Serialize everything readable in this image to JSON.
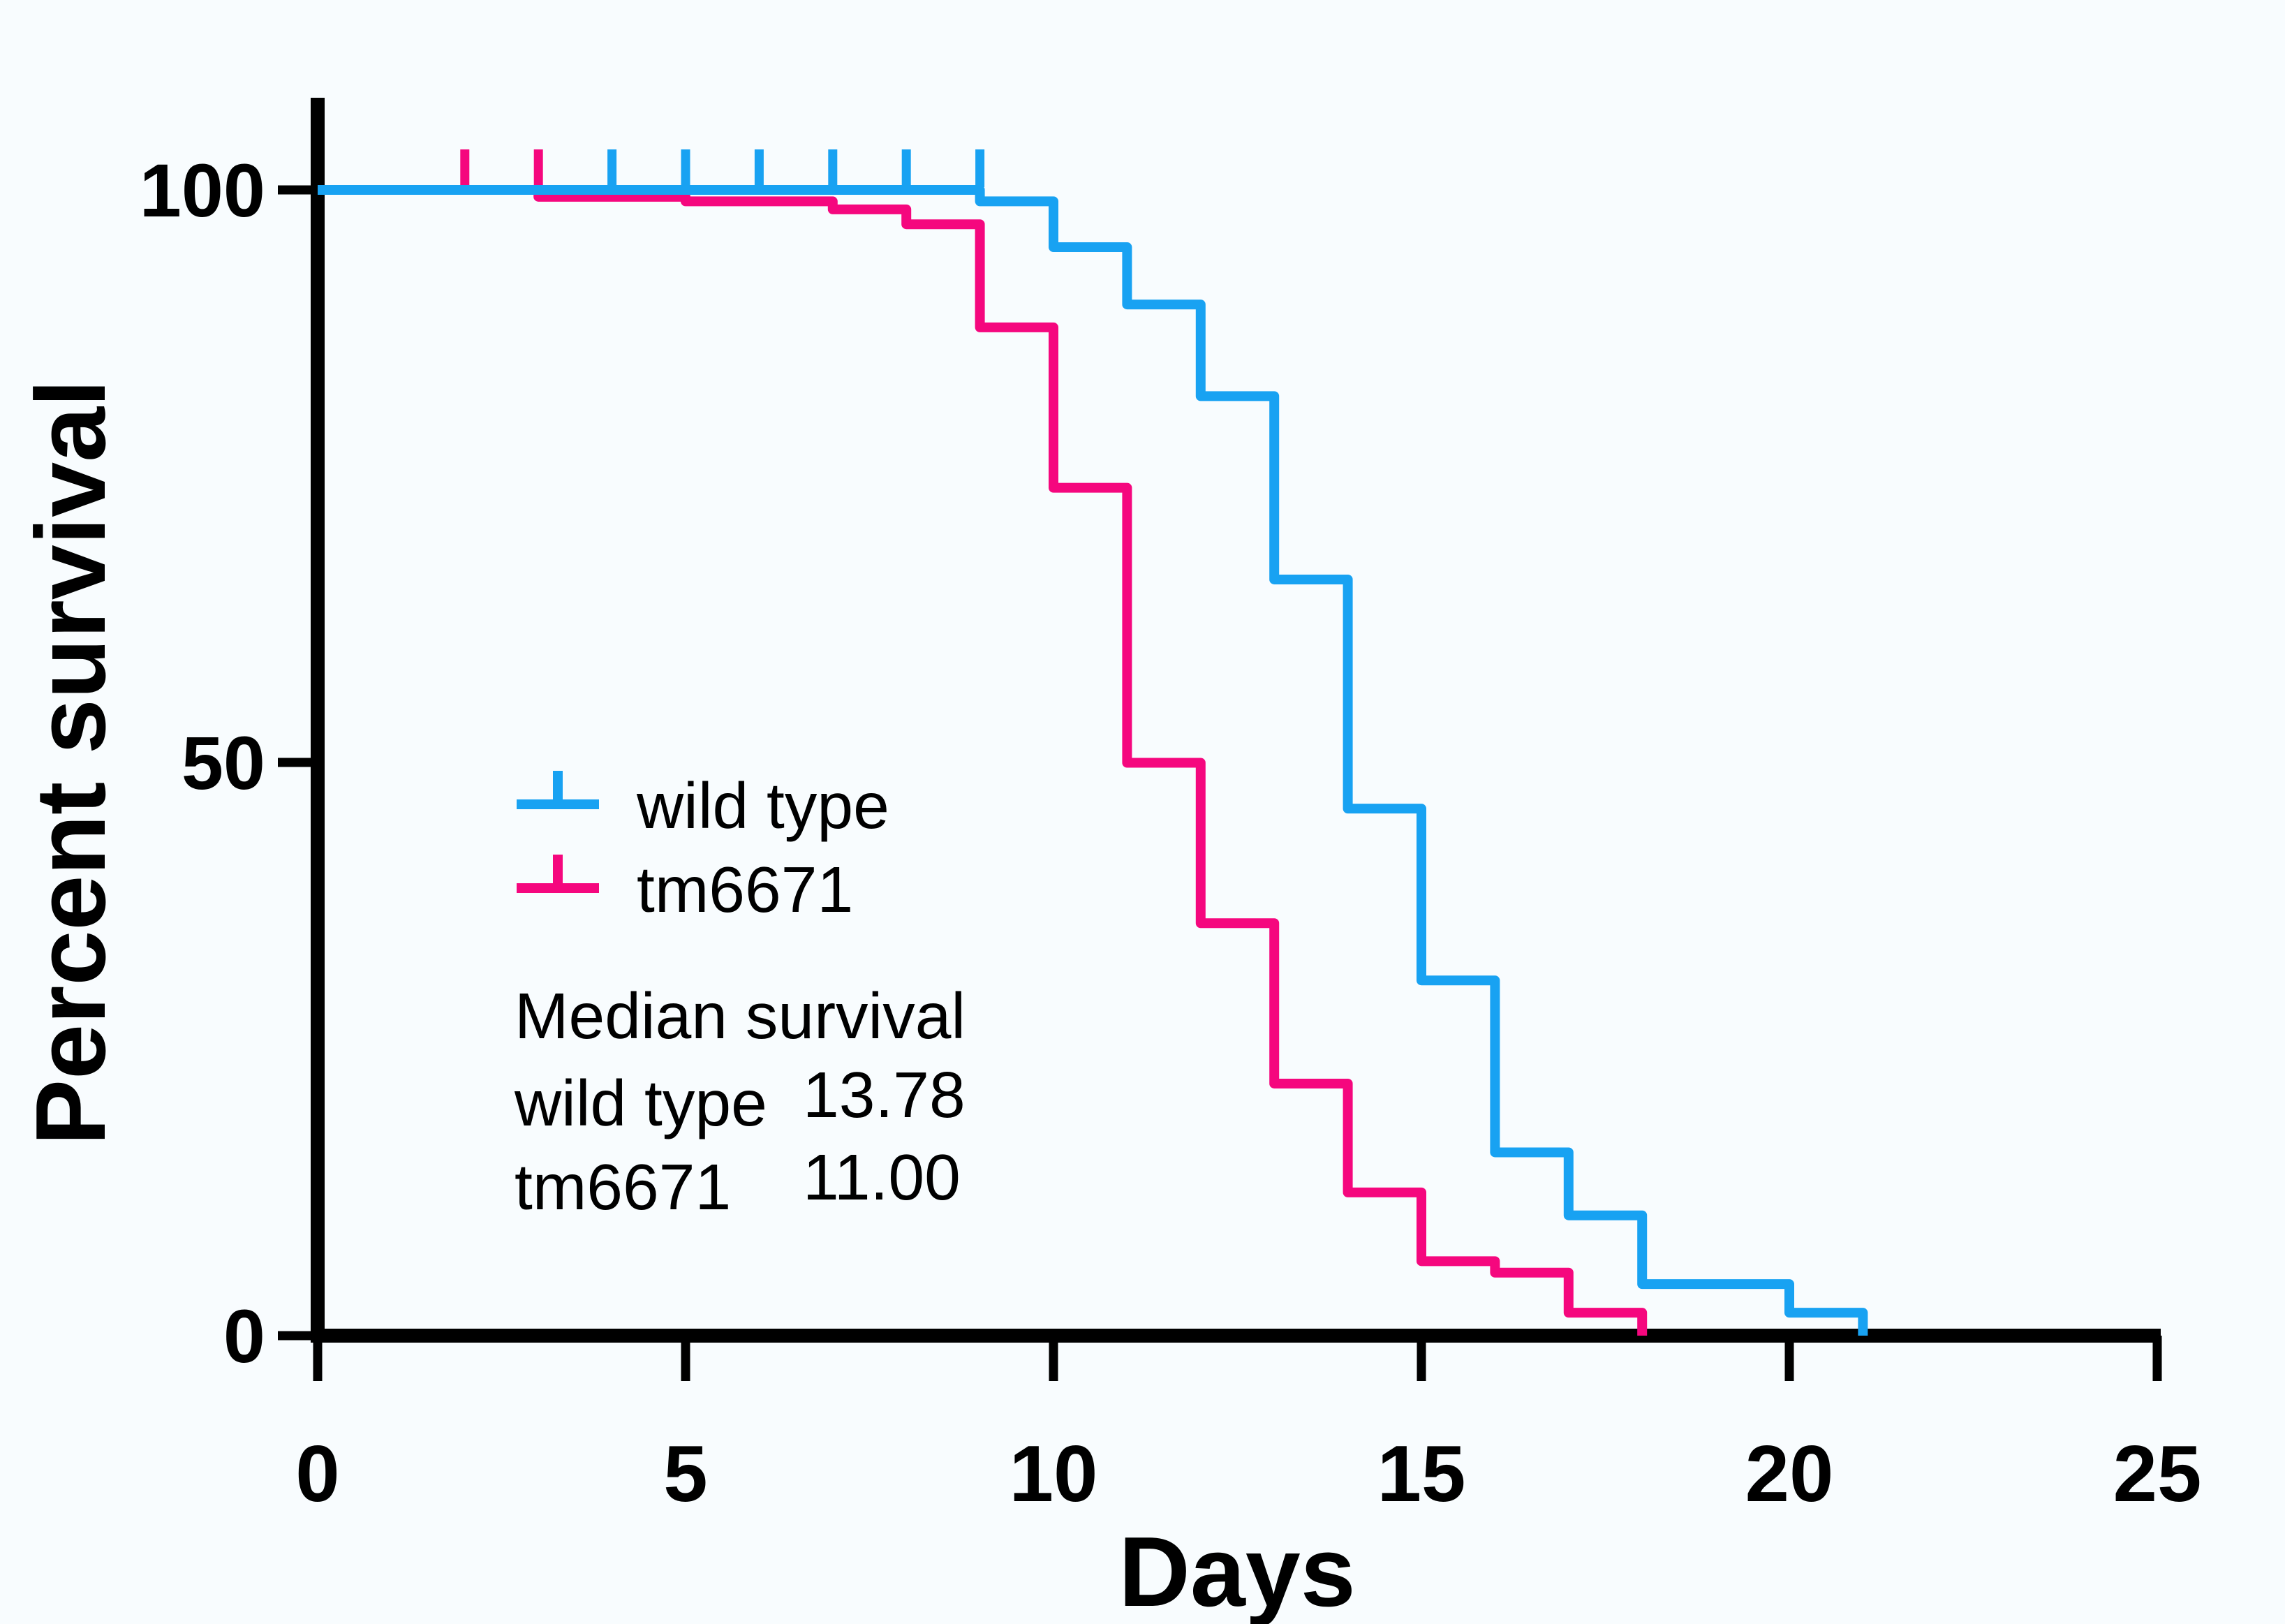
{
  "figure": {
    "kind": "kaplan-meier-survival-plot",
    "background": "#F8FCFE"
  },
  "chart_data": {
    "type": "line",
    "step_mode": "post",
    "title": "",
    "xlabel": "Days",
    "ylabel": "Percent survival",
    "xlim": [
      0,
      25
    ],
    "ylim": [
      0,
      100
    ],
    "grid": false,
    "legend_position": "inside-center-left",
    "x_tick_values": [
      0,
      5,
      10,
      15,
      20,
      25
    ],
    "x_tick_labels": [
      "0",
      "5",
      "10",
      "15",
      "20",
      "25"
    ],
    "y_tick_values": [
      100,
      50,
      0
    ],
    "y_tick_labels": [
      "100",
      "50",
      "0"
    ],
    "series": [
      {
        "name": "wild type",
        "color": "#18A2F2",
        "start": [
          0,
          100
        ],
        "events": [
          [
            9,
            99
          ],
          [
            10,
            95
          ],
          [
            11,
            90
          ],
          [
            12,
            82
          ],
          [
            13,
            66
          ],
          [
            14,
            46
          ],
          [
            15,
            31
          ],
          [
            16,
            16
          ],
          [
            17,
            10.5
          ],
          [
            18,
            4.5
          ],
          [
            20,
            2
          ],
          [
            21,
            0
          ]
        ],
        "censor_days": [
          4,
          5,
          6,
          7,
          8,
          9
        ],
        "censor_pct": 100,
        "median_survival": "13.78"
      },
      {
        "name": "tm6671",
        "color": "#F5077E",
        "start": [
          0,
          100
        ],
        "events": [
          [
            3,
            99.4
          ],
          [
            5,
            99
          ],
          [
            7,
            98.3
          ],
          [
            8,
            97
          ],
          [
            9,
            88
          ],
          [
            10,
            74
          ],
          [
            11,
            50
          ],
          [
            12,
            36
          ],
          [
            13,
            22
          ],
          [
            14,
            12.5
          ],
          [
            15,
            6.5
          ],
          [
            16,
            5.5
          ],
          [
            17,
            2
          ],
          [
            18,
            0
          ]
        ],
        "censor_days": [
          2,
          3
        ],
        "censor_pct": 100,
        "median_survival": "11.00"
      }
    ],
    "annotation": {
      "title": "Median survival",
      "rows": [
        {
          "label": "wild type",
          "value": "13.78"
        },
        {
          "label": "tm6671",
          "value": "11.00"
        }
      ]
    }
  }
}
